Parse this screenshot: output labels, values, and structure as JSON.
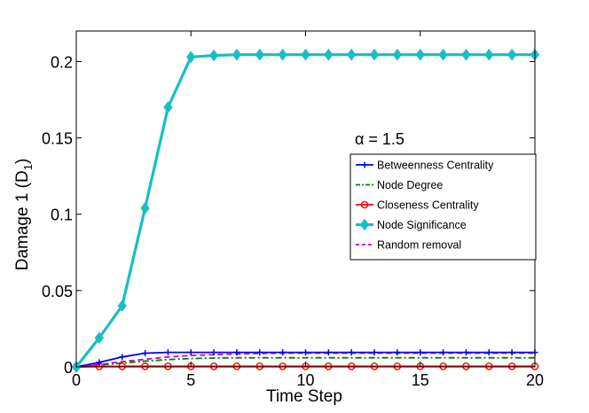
{
  "chart_data": {
    "type": "line",
    "title": "",
    "xlabel": "Time Step",
    "ylabel": "Damage 1 (D1)",
    "ylabel_main": "Damage 1 (D",
    "ylabel_subscript": "1",
    "ylabel_close": ")",
    "xlim": [
      0,
      20
    ],
    "ylim": [
      0,
      0.22
    ],
    "xticks": [
      0,
      5,
      10,
      15,
      20
    ],
    "xtick_labels": [
      "0",
      "5",
      "10",
      "15",
      "20"
    ],
    "yticks": [
      0,
      0.05,
      0.1,
      0.15,
      0.2
    ],
    "ytick_labels": [
      "0",
      "0.05",
      "0.1",
      "0.15",
      "0.2"
    ],
    "grid": false,
    "legend_position": "right",
    "annotation": "α = 1.5",
    "x": [
      0,
      1,
      2,
      3,
      4,
      5,
      6,
      7,
      8,
      9,
      10,
      11,
      12,
      13,
      14,
      15,
      16,
      17,
      18,
      19,
      20
    ],
    "series": [
      {
        "name": "Betweenness Centrality",
        "color": "#0000ff",
        "dash": "solid",
        "marker": "plus",
        "values": [
          0,
          0.003,
          0.0065,
          0.009,
          0.0095,
          0.0095,
          0.0095,
          0.0095,
          0.0095,
          0.0095,
          0.0095,
          0.0095,
          0.0095,
          0.0095,
          0.0095,
          0.0095,
          0.0095,
          0.0095,
          0.0095,
          0.0095,
          0.0095
        ]
      },
      {
        "name": "Node Degree",
        "color": "#008000",
        "dash": "dashdot",
        "marker": "none",
        "values": [
          0,
          0.0012,
          0.0025,
          0.0038,
          0.0048,
          0.0055,
          0.0058,
          0.006,
          0.006,
          0.006,
          0.006,
          0.006,
          0.006,
          0.006,
          0.006,
          0.006,
          0.006,
          0.006,
          0.006,
          0.006,
          0.006
        ]
      },
      {
        "name": "Closeness Centrality",
        "color": "#ff0000",
        "dash": "solid",
        "marker": "circle",
        "values": [
          0,
          0.0003,
          0.0004,
          0.0004,
          0.0004,
          0.0004,
          0.0004,
          0.0004,
          0.0004,
          0.0004,
          0.0004,
          0.0004,
          0.0004,
          0.0004,
          0.0004,
          0.0004,
          0.0004,
          0.0004,
          0.0004,
          0.0004,
          0.0004
        ]
      },
      {
        "name": "Node Significance",
        "color": "#17bfc5",
        "dash": "solid",
        "marker": "diamond",
        "values": [
          0,
          0.019,
          0.04,
          0.104,
          0.17,
          0.203,
          0.204,
          0.2045,
          0.2045,
          0.2045,
          0.2045,
          0.2045,
          0.2045,
          0.2045,
          0.2045,
          0.2045,
          0.2045,
          0.2045,
          0.2045,
          0.2045,
          0.2045
        ]
      },
      {
        "name": "Random removal",
        "color": "#cc00cc",
        "dash": "dashed",
        "marker": "none",
        "values": [
          0,
          0.0015,
          0.0035,
          0.005,
          0.0065,
          0.0075,
          0.008,
          0.0085,
          0.0088,
          0.009,
          0.009,
          0.009,
          0.009,
          0.009,
          0.009,
          0.009,
          0.009,
          0.009,
          0.009,
          0.009,
          0.009
        ]
      }
    ]
  }
}
